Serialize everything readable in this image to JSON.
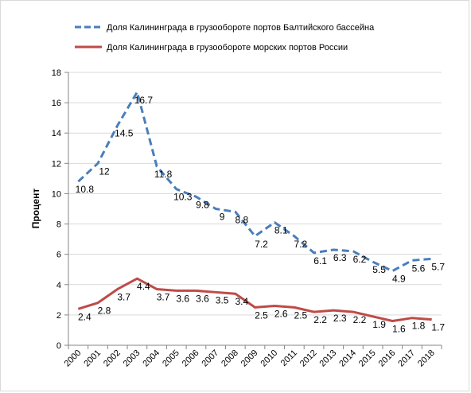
{
  "chart_data": {
    "type": "line",
    "categories": [
      "2000",
      "2001",
      "2002",
      "2003",
      "2004",
      "2005",
      "2006",
      "2007",
      "2008",
      "2009",
      "2010",
      "2011",
      "2012",
      "2013",
      "2014",
      "2015",
      "2016",
      "2017",
      "2018"
    ],
    "series": [
      {
        "name": "Доля Калининграда в грузообороте портов Балтийского бассейна",
        "color": "#4a7ebb",
        "style": "dashed",
        "values": [
          10.8,
          12,
          14.5,
          16.7,
          11.8,
          10.3,
          9.8,
          9,
          8.8,
          7.2,
          8.1,
          7.2,
          6.1,
          6.3,
          6.2,
          5.5,
          4.9,
          5.6,
          5.7
        ],
        "labels": [
          "10.8",
          "12",
          "14.5",
          "16.7",
          "11.8",
          "10.3",
          "9.8",
          "9",
          "8.8",
          "7.2",
          "8.1",
          "7.2",
          "6.1",
          "6.3",
          "6.2",
          "5.5",
          "4.9",
          "5.6",
          "5.7"
        ]
      },
      {
        "name": "Доля Калининграда в грузообороте морских портов России",
        "color": "#be4b48",
        "style": "solid",
        "values": [
          2.4,
          2.8,
          3.7,
          4.4,
          3.7,
          3.6,
          3.6,
          3.5,
          3.4,
          2.5,
          2.6,
          2.5,
          2.2,
          2.3,
          2.2,
          1.9,
          1.6,
          1.8,
          1.7
        ],
        "labels": [
          "2.4",
          "2.8",
          "3.7",
          "4.4",
          "3.7",
          "3.6",
          "3.6",
          "3.5",
          "3.4",
          "2.5",
          "2.6",
          "2.5",
          "2.2",
          "2.3",
          "2.2",
          "1.9",
          "1.6",
          "1.8",
          "1.7"
        ]
      }
    ],
    "ylabel": "Процент",
    "xlabel": "",
    "ylim": [
      0,
      18
    ],
    "yticks": [
      "0",
      "2",
      "4",
      "6",
      "8",
      "10",
      "12",
      "14",
      "16",
      "18"
    ],
    "grid": true,
    "legend": "top"
  }
}
